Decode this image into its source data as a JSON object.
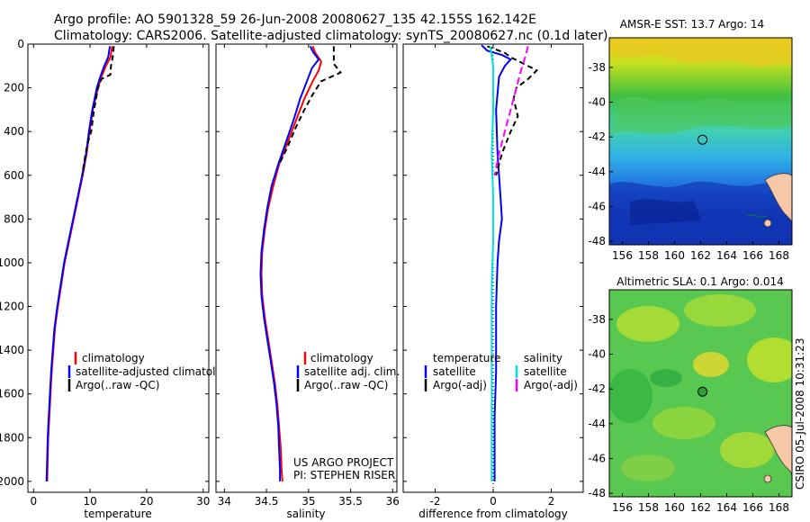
{
  "figure": {
    "title_line1": "Argo profile: AO 5901328_59 26-Jun-2008 20080627_135 42.155S 162.142E",
    "title_line2": "Climatology: CARS2006. Satellite-adjusted climatology: synTS_20080627.nc (0.1d later)",
    "credit": "CSIRO 05-Jul-2008 10:31:23",
    "project_line1": "US ARGO PROJECT",
    "project_line2": "PI: STEPHEN RISER"
  },
  "colors": {
    "climatology": "#ff0000",
    "satellite": "#0000ff",
    "argo": "#000000",
    "satellite_salinity": "#00e0e0",
    "argo_adj_salinity": "#ff00ff",
    "land": "#f6c8a8"
  },
  "chart_data": [
    {
      "type": "line",
      "panel": "temperature",
      "xlabel": "temperature",
      "ylabel": "",
      "xlim": [
        -1,
        31
      ],
      "ylim": [
        2050,
        0
      ],
      "x_ticks": [
        "0",
        "10",
        "20",
        "30"
      ],
      "y_ticks": [
        "0",
        "200",
        "400",
        "600",
        "800",
        "1000",
        "1200",
        "1400",
        "1600",
        "1800",
        "2000"
      ],
      "legend": [
        "climatology",
        "satellite-adjusted climatology",
        "Argo(..raw -QC)"
      ],
      "series": [
        {
          "name": "climatology",
          "color": "#ff0000",
          "dash": "",
          "points": [
            [
              13.9,
              10
            ],
            [
              13.6,
              60
            ],
            [
              12.8,
              100
            ],
            [
              12.0,
              150
            ],
            [
              11.4,
              200
            ],
            [
              10.5,
              300
            ],
            [
              9.9,
              400
            ],
            [
              9.4,
              500
            ],
            [
              8.7,
              600
            ],
            [
              7.9,
              700
            ],
            [
              7.1,
              800
            ],
            [
              6.3,
              900
            ],
            [
              5.5,
              1000
            ],
            [
              4.9,
              1100
            ],
            [
              4.3,
              1200
            ],
            [
              3.8,
              1300
            ],
            [
              3.5,
              1400
            ],
            [
              3.2,
              1500
            ],
            [
              3.0,
              1600
            ],
            [
              2.8,
              1700
            ],
            [
              2.6,
              1800
            ],
            [
              2.5,
              1900
            ],
            [
              2.4,
              2000
            ]
          ]
        },
        {
          "name": "satellite-adjusted climatology",
          "color": "#0000ff",
          "dash": "",
          "points": [
            [
              13.5,
              10
            ],
            [
              13.2,
              60
            ],
            [
              12.5,
              100
            ],
            [
              11.8,
              150
            ],
            [
              11.2,
              200
            ],
            [
              10.4,
              300
            ],
            [
              9.8,
              400
            ],
            [
              9.3,
              500
            ],
            [
              8.6,
              600
            ],
            [
              7.8,
              700
            ],
            [
              7.0,
              800
            ],
            [
              6.2,
              900
            ],
            [
              5.4,
              1000
            ],
            [
              4.8,
              1100
            ],
            [
              4.2,
              1200
            ],
            [
              3.7,
              1300
            ],
            [
              3.4,
              1400
            ],
            [
              3.1,
              1500
            ],
            [
              2.9,
              1600
            ],
            [
              2.7,
              1700
            ],
            [
              2.5,
              1800
            ],
            [
              2.4,
              1900
            ],
            [
              2.3,
              2000
            ]
          ]
        },
        {
          "name": "Argo(..raw -QC)",
          "color": "#000000",
          "dash": "6,4",
          "points": [
            [
              14.2,
              10
            ],
            [
              14.0,
              60
            ],
            [
              13.7,
              100
            ],
            [
              13.6,
              140
            ],
            [
              12.0,
              160
            ],
            [
              11.4,
              200
            ],
            [
              10.7,
              300
            ],
            [
              10.2,
              400
            ],
            [
              9.6,
              450
            ],
            [
              9.2,
              500
            ],
            [
              8.6,
              600
            ]
          ]
        }
      ]
    },
    {
      "type": "line",
      "panel": "salinity",
      "xlabel": "salinity",
      "ylabel": "",
      "xlim": [
        33.9,
        36.05
      ],
      "ylim": [
        2050,
        0
      ],
      "x_ticks": [
        "34",
        "34.5",
        "35",
        "35.5",
        "36"
      ],
      "y_ticks": [],
      "legend": [
        "climatology",
        "satellite adj. clim.",
        "Argo(..raw -QC)"
      ],
      "series": [
        {
          "name": "climatology",
          "color": "#ff0000",
          "dash": "",
          "points": [
            [
              35.05,
              10
            ],
            [
              35.08,
              40
            ],
            [
              35.15,
              80
            ],
            [
              35.12,
              120
            ],
            [
              35.05,
              170
            ],
            [
              34.95,
              250
            ],
            [
              34.85,
              350
            ],
            [
              34.75,
              450
            ],
            [
              34.65,
              550
            ],
            [
              34.58,
              650
            ],
            [
              34.52,
              750
            ],
            [
              34.48,
              850
            ],
            [
              34.45,
              950
            ],
            [
              34.44,
              1050
            ],
            [
              34.45,
              1150
            ],
            [
              34.48,
              1250
            ],
            [
              34.52,
              1350
            ],
            [
              34.56,
              1450
            ],
            [
              34.6,
              1550
            ],
            [
              34.63,
              1650
            ],
            [
              34.65,
              1750
            ],
            [
              34.67,
              1850
            ],
            [
              34.68,
              1950
            ],
            [
              34.69,
              2000
            ]
          ]
        },
        {
          "name": "satellite adj. clim.",
          "color": "#0000ff",
          "dash": "",
          "points": [
            [
              35.02,
              10
            ],
            [
              35.06,
              40
            ],
            [
              35.12,
              70
            ],
            [
              35.04,
              110
            ],
            [
              34.98,
              170
            ],
            [
              34.9,
              250
            ],
            [
              34.82,
              350
            ],
            [
              34.73,
              450
            ],
            [
              34.64,
              550
            ],
            [
              34.56,
              650
            ],
            [
              34.51,
              750
            ],
            [
              34.47,
              850
            ],
            [
              34.44,
              950
            ],
            [
              34.43,
              1050
            ],
            [
              34.44,
              1150
            ],
            [
              34.47,
              1250
            ],
            [
              34.51,
              1350
            ],
            [
              34.55,
              1450
            ],
            [
              34.59,
              1550
            ],
            [
              34.62,
              1650
            ],
            [
              34.64,
              1750
            ],
            [
              34.65,
              1850
            ],
            [
              34.66,
              1950
            ],
            [
              34.66,
              2000
            ]
          ]
        },
        {
          "name": "Argo(..raw -QC)",
          "color": "#000000",
          "dash": "6,4",
          "points": [
            [
              35.3,
              10
            ],
            [
              35.3,
              90
            ],
            [
              35.38,
              130
            ],
            [
              35.15,
              170
            ],
            [
              35.05,
              230
            ],
            [
              34.95,
              300
            ],
            [
              34.85,
              380
            ],
            [
              34.75,
              470
            ],
            [
              34.65,
              550
            ]
          ]
        }
      ]
    },
    {
      "type": "line",
      "panel": "difference",
      "xlabel": "difference from climatology",
      "ylabel": "",
      "xlim": [
        -3.1,
        3.1
      ],
      "ylim": [
        2050,
        0
      ],
      "x_ticks": [
        "-2",
        "0",
        "2"
      ],
      "y_ticks": [],
      "legend_header_left": "temperature",
      "legend_header_right": "salinity",
      "legend": [
        "satellite",
        "Argo(-adj)",
        "satellite",
        "Argo(-adj)"
      ],
      "series": [
        {
          "name": "temperature satellite",
          "color": "#0000ff",
          "dash": "",
          "points": [
            [
              -0.4,
              5
            ],
            [
              -0.2,
              30
            ],
            [
              0.3,
              50
            ],
            [
              0.6,
              70
            ],
            [
              0.4,
              100
            ],
            [
              0.2,
              150
            ],
            [
              0.1,
              300
            ],
            [
              0.15,
              500
            ],
            [
              0.2,
              600
            ],
            [
              0.25,
              700
            ],
            [
              0.3,
              800
            ],
            [
              0.2,
              900
            ],
            [
              0.15,
              1000
            ],
            [
              0.1,
              1200
            ],
            [
              0.1,
              1500
            ],
            [
              0.05,
              1700
            ],
            [
              0.05,
              1900
            ],
            [
              0.05,
              2000
            ]
          ]
        },
        {
          "name": "temperature Argo(-adj)",
          "color": "#000000",
          "dash": "6,4",
          "points": [
            [
              -0.2,
              10
            ],
            [
              0.4,
              40
            ],
            [
              0.6,
              60
            ],
            [
              0.9,
              80
            ],
            [
              1.5,
              120
            ],
            [
              1.2,
              160
            ],
            [
              0.8,
              200
            ],
            [
              0.7,
              250
            ],
            [
              0.85,
              330
            ],
            [
              0.6,
              400
            ],
            [
              0.3,
              500
            ],
            [
              0.1,
              600
            ]
          ]
        },
        {
          "name": "salinity satellite",
          "color": "#00e0e0",
          "dash": "",
          "points": [
            [
              -0.1,
              10
            ],
            [
              0.0,
              100
            ],
            [
              0.0,
              300
            ],
            [
              -0.05,
              500
            ],
            [
              0.0,
              700
            ],
            [
              0.0,
              900
            ],
            [
              -0.05,
              1100
            ],
            [
              -0.05,
              1300
            ],
            [
              -0.05,
              1500
            ],
            [
              -0.05,
              1700
            ],
            [
              -0.05,
              1900
            ],
            [
              -0.05,
              2000
            ]
          ]
        },
        {
          "name": "salinity Argo(-adj)",
          "color": "#ff00ff",
          "dash": "8,4",
          "points": [
            [
              1.2,
              10
            ],
            [
              1.1,
              60
            ],
            [
              1.0,
              100
            ],
            [
              0.9,
              150
            ],
            [
              0.8,
              200
            ],
            [
              0.6,
              300
            ],
            [
              0.4,
              400
            ],
            [
              0.2,
              500
            ],
            [
              0.05,
              600
            ]
          ]
        }
      ]
    },
    {
      "type": "heatmap",
      "panel": "sst_map",
      "title": "AMSR-E SST: 13.7 Argo: 14",
      "x_ticks": [
        "156",
        "158",
        "160",
        "162",
        "164",
        "166",
        "168"
      ],
      "y_ticks": [
        "-38",
        "-40",
        "-42",
        "-44",
        "-46",
        "-48"
      ],
      "xlim": [
        155,
        169
      ],
      "ylim": [
        -48.2,
        -36.3
      ],
      "marker": [
        162.142,
        -42.155
      ]
    },
    {
      "type": "heatmap",
      "panel": "sla_map",
      "title": "Altimetric SLA: 0.1 Argo: 0.014",
      "x_ticks": [
        "156",
        "158",
        "160",
        "162",
        "164",
        "166",
        "168"
      ],
      "y_ticks": [
        "-38",
        "-40",
        "-42",
        "-44",
        "-46",
        "-48"
      ],
      "xlim": [
        155,
        169
      ],
      "ylim": [
        -48.2,
        -36.3
      ],
      "marker": [
        162.142,
        -42.155
      ]
    }
  ]
}
